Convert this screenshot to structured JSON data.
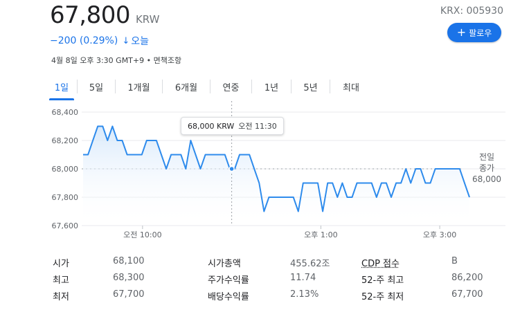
{
  "quote": {
    "price": "67,800",
    "currency": "KRW",
    "change": "−200 (0.29%)",
    "change_arrow": "↓",
    "period_label": "오늘",
    "timestamp": "4월 8일 오후 3:30 GMT+9",
    "disclaimer": "면책조항",
    "ticker": "KRX: 005930"
  },
  "follow_button": {
    "icon": "plus-icon",
    "label": "팔로우"
  },
  "tabs": [
    {
      "label": "1일",
      "active": true
    },
    {
      "label": "5일"
    },
    {
      "label": "1개월"
    },
    {
      "label": "6개월"
    },
    {
      "label": "연중"
    },
    {
      "label": "1년"
    },
    {
      "label": "5년"
    },
    {
      "label": "최대"
    }
  ],
  "tooltip": {
    "value": "68,000 KRW",
    "time": "오전 11:30"
  },
  "prev_close": {
    "line1": "전일",
    "line2": "종가",
    "value": "68,000"
  },
  "colors": {
    "accent": "#1a73e8",
    "line": "#2e8bec",
    "fill_top": "#d6e8fb",
    "grid": "#e8eaed",
    "text_muted": "#5f6368"
  },
  "chart_data": {
    "type": "area",
    "x_tick_labels": [
      "오전 10:00",
      "오후 1:00",
      "오후 3:00"
    ],
    "y_tick_labels": [
      "68,400",
      "68,200",
      "68,000",
      "67,800",
      "67,600"
    ],
    "ylim": [
      67600,
      68400
    ],
    "previous_close": 68000,
    "hover_point": {
      "time": "11:30",
      "value": 68000
    },
    "grid": true,
    "series": [
      {
        "values": [
          68100,
          68100,
          68200,
          68300,
          68300,
          68200,
          68300,
          68200,
          68200,
          68100,
          68100,
          68100,
          68100,
          68200,
          68200,
          68200,
          68100,
          68000,
          68100,
          68100,
          68100,
          68000,
          68200,
          68100,
          68000,
          68100,
          68100,
          68100,
          68100,
          68100,
          68000,
          68000,
          68100,
          68100,
          68100,
          68000,
          67900,
          67700,
          67800,
          67800,
          67800,
          67800,
          67800,
          67800,
          67700,
          67900,
          67900,
          67900,
          67900,
          67700,
          67900,
          67900,
          67800,
          67900,
          67800,
          67800,
          67900,
          67900,
          67900,
          67900,
          67800,
          67900,
          67900,
          67800,
          67900,
          67900,
          68000,
          67900,
          68000,
          68000,
          67900,
          67900,
          68000,
          68000,
          68000,
          68000,
          68000,
          68000,
          67900,
          67800
        ]
      }
    ]
  },
  "stats": {
    "col1": [
      {
        "label": "시가",
        "value": "68,100"
      },
      {
        "label": "최고",
        "value": "68,300"
      },
      {
        "label": "최저",
        "value": "67,700"
      }
    ],
    "col2": [
      {
        "label": "시가총액",
        "value": "455.62조"
      },
      {
        "label": "주가수익률",
        "value": "11.74"
      },
      {
        "label": "배당수익률",
        "value": "2.13%"
      }
    ],
    "col3": [
      {
        "label": "CDP 점수",
        "value": "B"
      },
      {
        "label": "52-주 최고",
        "value": "86,200"
      },
      {
        "label": "52-주 최저",
        "value": "67,700"
      }
    ]
  }
}
